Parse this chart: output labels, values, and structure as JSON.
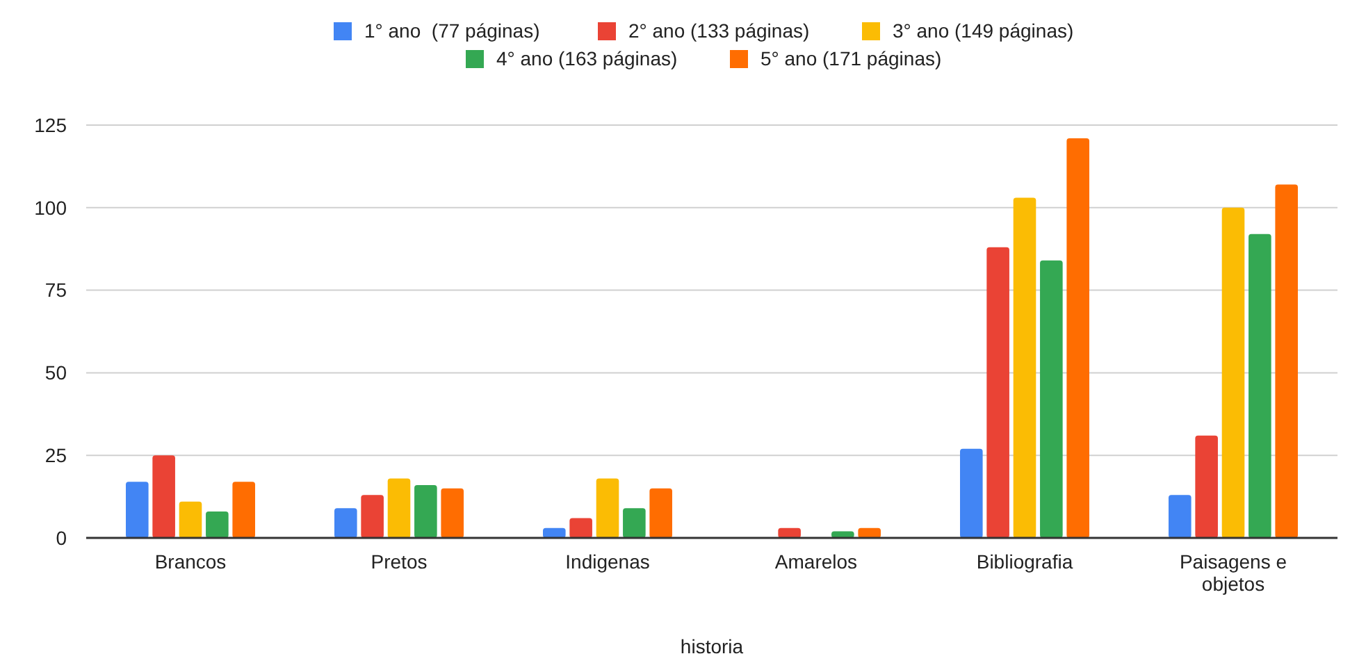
{
  "chart_data": {
    "type": "bar",
    "xlabel": "historia",
    "categories": [
      "Brancos",
      "Pretos",
      "Indigenas",
      "Amarelos",
      "Bibliografia",
      "Paisagens e objetos"
    ],
    "series": [
      {
        "name": "1° ano  (77 páginas)",
        "color": "#4285f4",
        "values": [
          17,
          9,
          3,
          0,
          27,
          13
        ]
      },
      {
        "name": "2° ano (133 páginas)",
        "color": "#ea4335",
        "values": [
          25,
          13,
          6,
          3,
          88,
          31
        ]
      },
      {
        "name": "3° ano (149 páginas)",
        "color": "#fbbc04",
        "values": [
          11,
          18,
          18,
          null,
          103,
          100
        ]
      },
      {
        "name": "4° ano (163 páginas)",
        "color": "#34a853",
        "values": [
          8,
          16,
          9,
          2,
          84,
          92
        ]
      },
      {
        "name": "5° ano (171 páginas)",
        "color": "#ff6d01",
        "values": [
          17,
          15,
          15,
          3,
          121,
          107
        ]
      }
    ],
    "ylim": [
      0,
      125
    ],
    "yticks": [
      0,
      25,
      50,
      75,
      100,
      125
    ],
    "grid": "y",
    "legend": "top"
  }
}
